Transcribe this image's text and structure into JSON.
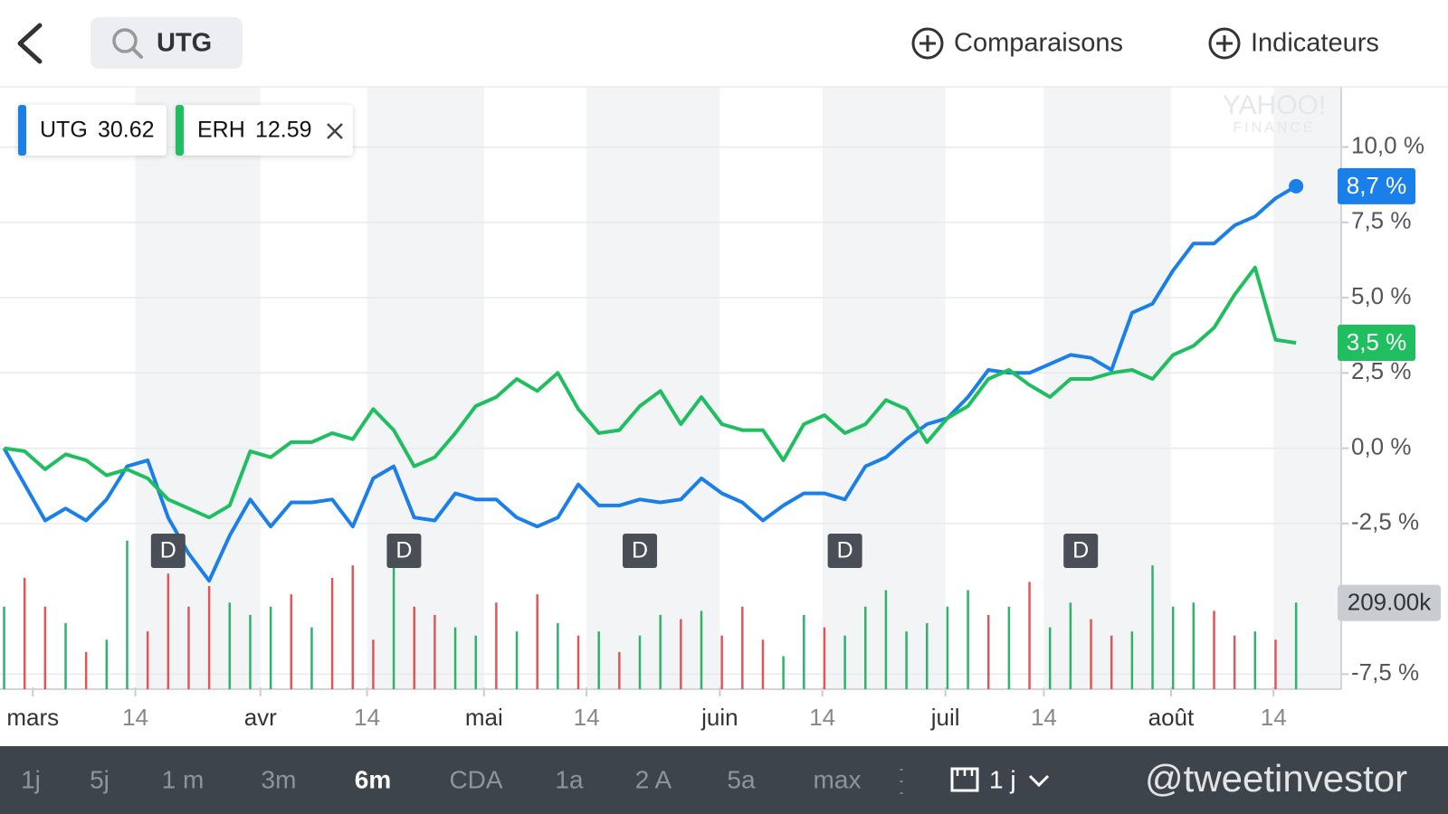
{
  "header": {
    "search": "UTG",
    "comparisons": "Comparaisons",
    "indicators": "Indicateurs"
  },
  "chart_data": {
    "type": "line",
    "watermark": [
      "YAHOO!",
      "FINANCE"
    ],
    "xlim": [
      -0.2,
      65.2
    ],
    "xticks": [
      {
        "value": 1.4,
        "label": "mars"
      },
      {
        "value": 6.4,
        "label": "14"
      },
      {
        "value": 12.5,
        "label": "avr"
      },
      {
        "value": 17.7,
        "label": "14"
      },
      {
        "value": 23.4,
        "label": "mai"
      },
      {
        "value": 28.4,
        "label": "14"
      },
      {
        "value": 34.9,
        "label": "juin"
      },
      {
        "value": 39.9,
        "label": "14"
      },
      {
        "value": 45.9,
        "label": "juil"
      },
      {
        "value": 50.7,
        "label": "14"
      },
      {
        "value": 56.9,
        "label": "août"
      },
      {
        "value": 61.9,
        "label": "14"
      }
    ],
    "ylim": [
      -8,
      12
    ],
    "yticks": [
      {
        "value": 10,
        "label": "10,0 %"
      },
      {
        "value": 7.5,
        "label": "7,5 %"
      },
      {
        "value": 5,
        "label": "5,0 %"
      },
      {
        "value": 2.5,
        "label": "2,5 %"
      },
      {
        "value": 0,
        "label": "0,0 %"
      },
      {
        "value": -2.5,
        "label": "-2,5 %"
      },
      {
        "value": -7.5,
        "label": "-7,5 %"
      }
    ],
    "grid": true,
    "series": [
      {
        "name": "UTG",
        "price": 30.62,
        "color": "#1a7fe8",
        "end_label": "8,7 %",
        "values": [
          0.0,
          -1.2,
          -2.4,
          -2.0,
          -2.4,
          -1.7,
          -0.6,
          -0.4,
          -2.3,
          -3.5,
          -4.4,
          -2.9,
          -1.7,
          -2.6,
          -1.8,
          -1.8,
          -1.7,
          -2.6,
          -1.0,
          -0.6,
          -2.3,
          -2.4,
          -1.5,
          -1.7,
          -1.7,
          -2.3,
          -2.6,
          -2.3,
          -1.2,
          -1.9,
          -1.9,
          -1.7,
          -1.8,
          -1.7,
          -1.0,
          -1.5,
          -1.8,
          -2.4,
          -1.9,
          -1.5,
          -1.5,
          -1.7,
          -0.6,
          -0.3,
          0.3,
          0.8,
          1.0,
          1.7,
          2.6,
          2.5,
          2.5,
          2.8,
          3.1,
          3.0,
          2.6,
          4.5,
          4.8,
          5.9,
          6.8,
          6.8,
          7.4,
          7.7,
          8.3,
          8.7
        ]
      },
      {
        "name": "ERH",
        "price": 12.59,
        "color": "#1fbf5f",
        "end_label": "3,5 %",
        "values": [
          0.0,
          -0.1,
          -0.7,
          -0.2,
          -0.4,
          -0.9,
          -0.7,
          -1.0,
          -1.7,
          -2.0,
          -2.3,
          -1.9,
          -0.1,
          -0.3,
          0.2,
          0.2,
          0.5,
          0.3,
          1.3,
          0.6,
          -0.6,
          -0.3,
          0.5,
          1.4,
          1.7,
          2.3,
          1.9,
          2.5,
          1.3,
          0.5,
          0.6,
          1.4,
          1.9,
          0.8,
          1.7,
          0.8,
          0.6,
          0.6,
          -0.4,
          0.8,
          1.1,
          0.5,
          0.8,
          1.6,
          1.3,
          0.2,
          1.0,
          1.4,
          2.3,
          2.6,
          2.1,
          1.7,
          2.3,
          2.3,
          2.5,
          2.6,
          2.3,
          3.1,
          3.4,
          4.0,
          5.1,
          6.0,
          3.6,
          3.5
        ]
      }
    ],
    "volume": {
      "vlim": [
        0,
        1460
      ],
      "marker": {
        "value": 209,
        "label": "209.00k"
      },
      "values": [
        200,
        270,
        200,
        160,
        90,
        120,
        360,
        140,
        280,
        200,
        250,
        210,
        180,
        200,
        230,
        150,
        270,
        300,
        120,
        340,
        200,
        180,
        150,
        130,
        210,
        140,
        230,
        160,
        130,
        140,
        90,
        130,
        180,
        170,
        190,
        130,
        200,
        120,
        80,
        180,
        150,
        130,
        200,
        240,
        140,
        160,
        200,
        240,
        180,
        200,
        260,
        150,
        210,
        170,
        130,
        140,
        300,
        200,
        210,
        190,
        130,
        140,
        120,
        210
      ],
      "colors": [
        "#2fb36b",
        "#e0575a",
        "#e0575a",
        "#2fb36b",
        "#e0575a",
        "#2fb36b",
        "#2fb36b",
        "#e0575a",
        "#e0575a",
        "#e0575a",
        "#e0575a",
        "#2fb36b",
        "#2fb36b",
        "#2fb36b",
        "#e0575a",
        "#2fb36b",
        "#e0575a",
        "#e0575a",
        "#e0575a",
        "#2fb36b",
        "#e0575a",
        "#e0575a",
        "#2fb36b",
        "#2fb36b",
        "#e0575a",
        "#2fb36b",
        "#e0575a",
        "#2fb36b",
        "#e0575a",
        "#2fb36b",
        "#e0575a",
        "#2fb36b",
        "#2fb36b",
        "#e0575a",
        "#2fb36b",
        "#e0575a",
        "#e0575a",
        "#e0575a",
        "#2fb36b",
        "#2fb36b",
        "#e0575a",
        "#2fb36b",
        "#2fb36b",
        "#2fb36b",
        "#2fb36b",
        "#2fb36b",
        "#2fb36b",
        "#2fb36b",
        "#e0575a",
        "#2fb36b",
        "#e0575a",
        "#2fb36b",
        "#2fb36b",
        "#e0575a",
        "#e0575a",
        "#2fb36b",
        "#2fb36b",
        "#2fb36b",
        "#2fb36b",
        "#e0575a",
        "#e0575a",
        "#2fb36b",
        "#e0575a",
        "#2fb36b"
      ]
    },
    "events": [
      {
        "x": 8.0,
        "label": "D"
      },
      {
        "x": 19.5,
        "label": "D"
      },
      {
        "x": 31.0,
        "label": "D"
      },
      {
        "x": 41.0,
        "label": "D"
      },
      {
        "x": 52.5,
        "label": "D"
      }
    ]
  },
  "footer": {
    "ranges": [
      "1j",
      "5j",
      "1 m",
      "3m",
      "6m",
      "CDA",
      "1a",
      "2 A",
      "5a",
      "max"
    ],
    "selected": 4,
    "interval": "1 j",
    "watermark": "@tweetinvestor"
  }
}
